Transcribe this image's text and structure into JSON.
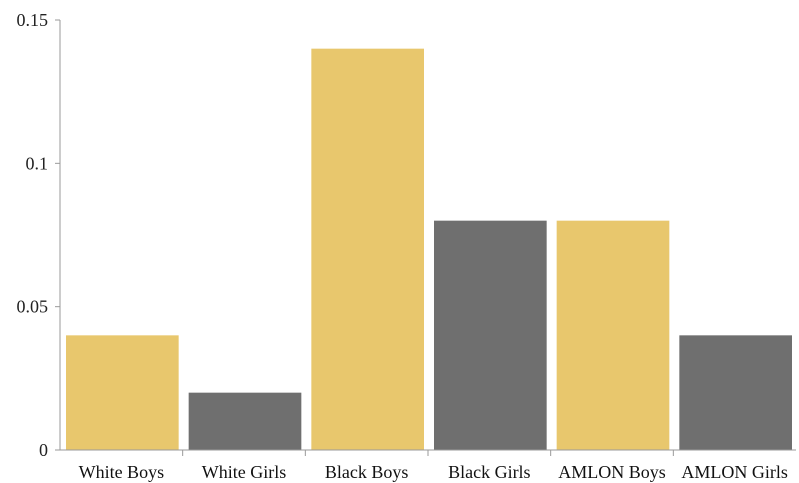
{
  "chart_data": {
    "type": "bar",
    "title": "",
    "xlabel": "",
    "ylabel": "",
    "categories": [
      "White Boys",
      "White Girls",
      "Black Boys",
      "Black Girls",
      "AMLON Boys",
      "AMLON Girls"
    ],
    "values": [
      0.04,
      0.02,
      0.14,
      0.08,
      0.08,
      0.04
    ],
    "bar_colors": [
      "#e8c76d",
      "#6f6f6f",
      "#e8c76d",
      "#6f6f6f",
      "#e8c76d",
      "#6f6f6f"
    ],
    "ylim": [
      0,
      0.15
    ],
    "yticks": [
      0,
      0.05,
      0.1,
      0.15
    ],
    "ytick_labels": [
      "0",
      "0.05",
      "0.1",
      "0.15"
    ],
    "grid": false,
    "legend": "none"
  }
}
